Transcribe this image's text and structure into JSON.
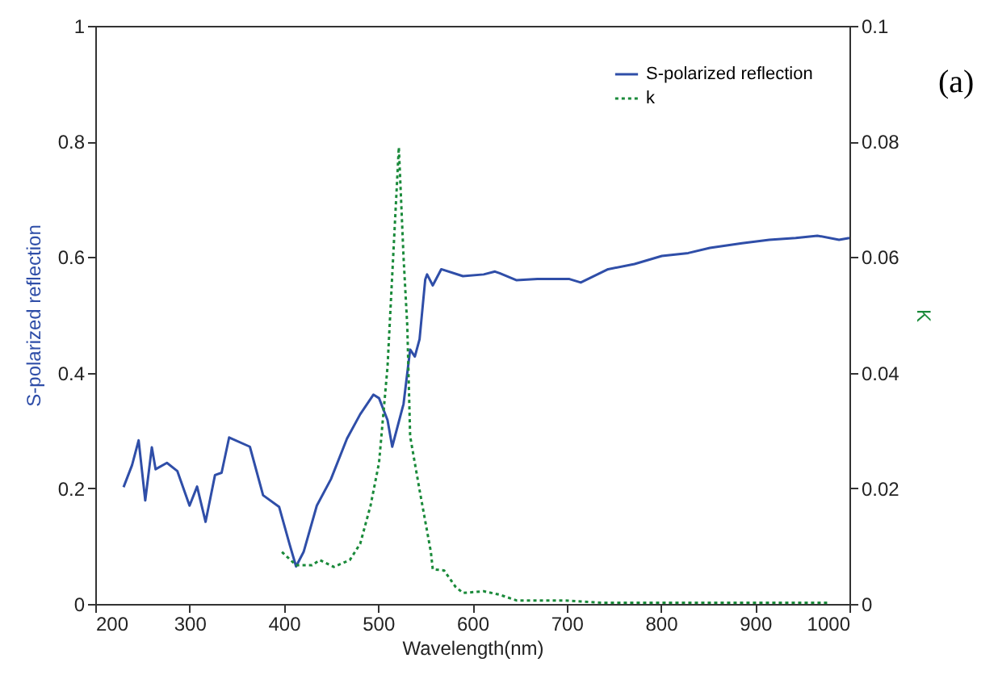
{
  "chart_data": {
    "type": "line",
    "xlabel": "Wavelength(nm)",
    "ylabel": "S-polarized reflection",
    "y2label": "K",
    "annotations": [
      "(a)"
    ],
    "legend": "top right",
    "xlim": [
      200,
      1000
    ],
    "xticks": [
      200,
      300,
      400,
      500,
      600,
      700,
      800,
      900,
      1000
    ],
    "ylim": [
      0,
      1
    ],
    "yticks": [
      0,
      0.2,
      0.4,
      0.6,
      0.8,
      1
    ],
    "y2lim": [
      0,
      0.1
    ],
    "y2ticks": [
      0,
      0.02,
      0.04,
      0.06,
      0.08,
      0.1
    ],
    "series": [
      {
        "name": "S-polarized reflection",
        "color": "#2f4ea8",
        "line_style": "solid",
        "x": [
          230,
          239,
          246,
          253,
          260,
          264,
          276,
          287,
          300,
          308,
          317,
          327,
          334,
          342,
          364,
          378,
          395,
          406,
          413,
          421,
          435,
          450,
          467,
          481,
          495,
          501,
          510,
          515,
          527,
          534,
          539,
          544,
          550,
          552,
          558,
          567,
          590,
          612,
          624,
          629,
          647,
          669,
          703,
          715,
          744,
          772,
          801,
          829,
          852,
          886,
          915,
          943,
          966,
          989,
          1000
        ],
        "values": [
          0.202,
          0.24,
          0.283,
          0.179,
          0.271,
          0.233,
          0.244,
          0.23,
          0.17,
          0.203,
          0.142,
          0.223,
          0.227,
          0.288,
          0.272,
          0.188,
          0.168,
          0.104,
          0.065,
          0.09,
          0.17,
          0.216,
          0.286,
          0.328,
          0.362,
          0.356,
          0.318,
          0.272,
          0.346,
          0.44,
          0.428,
          0.458,
          0.561,
          0.57,
          0.551,
          0.579,
          0.567,
          0.57,
          0.575,
          0.572,
          0.56,
          0.562,
          0.562,
          0.556,
          0.579,
          0.588,
          0.602,
          0.607,
          0.616,
          0.624,
          0.63,
          0.633,
          0.637,
          0.63,
          0.633
        ]
      },
      {
        "name": "k",
        "color": "#1a8a3a",
        "line_style": "dotted",
        "axis": "y2",
        "x": [
          398,
          413,
          430,
          438,
          453,
          470,
          481,
          492,
          501,
          510,
          522,
          527,
          531,
          534,
          544,
          556,
          558,
          570,
          582,
          590,
          612,
          629,
          647,
          698,
          738,
          977
        ],
        "values": [
          0.009,
          0.0067,
          0.0067,
          0.0076,
          0.0064,
          0.0076,
          0.0104,
          0.017,
          0.0244,
          0.041,
          0.079,
          0.06,
          0.048,
          0.029,
          0.0197,
          0.009,
          0.006,
          0.0058,
          0.003,
          0.0019,
          0.0022,
          0.0016,
          0.0006,
          0.0006,
          0.0002,
          0.0002
        ]
      }
    ]
  }
}
